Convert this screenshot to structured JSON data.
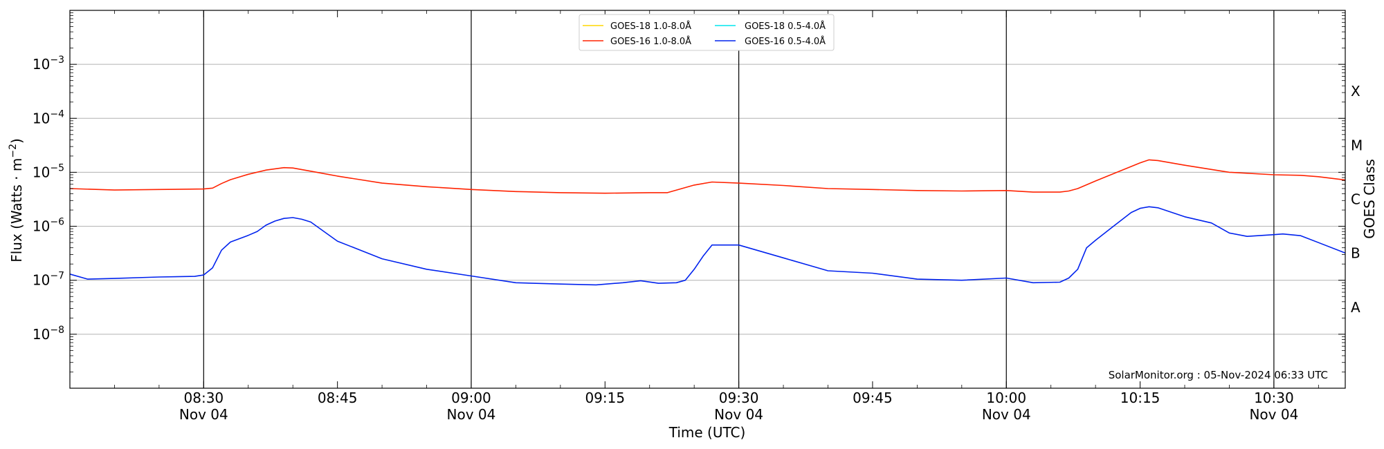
{
  "chart_data": {
    "type": "line",
    "title": "",
    "xlabel": "Time (UTC)",
    "ylabel": "Flux (Watts · m",
    "ylabel_sup": "−2",
    "ylabel_close": ")",
    "y2label": "GOES Class",
    "yscale": "log",
    "ylim": [
      1e-09,
      0.01
    ],
    "xlim": [
      "2024-11-04 08:15",
      "2024-11-04 10:38"
    ],
    "grid": "horizontal at decades",
    "legend_position": "top-center",
    "credit": "SolarMonitor.org : 05-Nov-2024 06:33 UTC",
    "yticks": [
      {
        "value": 1e-08,
        "base": "10",
        "exp": "−8"
      },
      {
        "value": 1e-07,
        "base": "10",
        "exp": "−7"
      },
      {
        "value": 1e-06,
        "base": "10",
        "exp": "−6"
      },
      {
        "value": 1e-05,
        "base": "10",
        "exp": "−5"
      },
      {
        "value": 0.0001,
        "base": "10",
        "exp": "−4"
      },
      {
        "value": 0.001,
        "base": "10",
        "exp": "−3"
      }
    ],
    "goes_classes": [
      {
        "label": "A",
        "value": 3.16e-08
      },
      {
        "label": "B",
        "value": 3.16e-07
      },
      {
        "label": "C",
        "value": 3.16e-06
      },
      {
        "label": "M",
        "value": 3.16e-05
      },
      {
        "label": "X",
        "value": 0.000316
      }
    ],
    "xticks": [
      {
        "time": "08:30",
        "line1": "08:30",
        "line2": "Nov 04",
        "major": true
      },
      {
        "time": "08:45",
        "line1": "08:45",
        "line2": "",
        "major": false
      },
      {
        "time": "09:00",
        "line1": "09:00",
        "line2": "Nov 04",
        "major": true
      },
      {
        "time": "09:15",
        "line1": "09:15",
        "line2": "",
        "major": false
      },
      {
        "time": "09:30",
        "line1": "09:30",
        "line2": "Nov 04",
        "major": true
      },
      {
        "time": "09:45",
        "line1": "09:45",
        "line2": "",
        "major": false
      },
      {
        "time": "10:00",
        "line1": "10:00",
        "line2": "Nov 04",
        "major": true
      },
      {
        "time": "10:15",
        "line1": "10:15",
        "line2": "",
        "major": false
      },
      {
        "time": "10:30",
        "line1": "10:30",
        "line2": "Nov 04",
        "major": true
      }
    ],
    "series": [
      {
        "name": "GOES-18 1.0-8.0Å",
        "color": "#ffd700",
        "x": [],
        "values": []
      },
      {
        "name": "GOES-18 0.5-4.0Å",
        "color": "#00e5ee",
        "x": [],
        "values": []
      },
      {
        "name": "GOES-16 1.0-8.0Å",
        "color": "#ff2200",
        "x": [
          "08:15",
          "08:20",
          "08:25",
          "08:30",
          "08:31",
          "08:32",
          "08:33",
          "08:35",
          "08:37",
          "08:39",
          "08:40",
          "08:42",
          "08:45",
          "08:50",
          "08:55",
          "09:00",
          "09:05",
          "09:10",
          "09:15",
          "09:20",
          "09:22",
          "09:25",
          "09:27",
          "09:30",
          "09:35",
          "09:40",
          "09:45",
          "09:50",
          "09:55",
          "10:00",
          "10:03",
          "10:06",
          "10:07",
          "10:08",
          "10:10",
          "10:13",
          "10:15",
          "10:16",
          "10:17",
          "10:20",
          "10:25",
          "10:30",
          "10:33",
          "10:35",
          "10:38"
        ],
        "values": [
          5e-06,
          4.7e-06,
          4.8e-06,
          4.9e-06,
          5.1e-06,
          6.2e-06,
          7.3e-06,
          9.2e-06,
          1.1e-05,
          1.22e-05,
          1.2e-05,
          1.05e-05,
          8.5e-06,
          6.3e-06,
          5.4e-06,
          4.8e-06,
          4.4e-06,
          4.2e-06,
          4.1e-06,
          4.2e-06,
          4.2e-06,
          5.8e-06,
          6.6e-06,
          6.3e-06,
          5.7e-06,
          5e-06,
          4.8e-06,
          4.6e-06,
          4.5e-06,
          4.6e-06,
          4.3e-06,
          4.3e-06,
          4.5e-06,
          5e-06,
          6.9e-06,
          1.1e-05,
          1.5e-05,
          1.7e-05,
          1.65e-05,
          1.35e-05,
          1e-05,
          9e-06,
          8.8e-06,
          8.3e-06,
          7.2e-06
        ]
      },
      {
        "name": "GOES-16 0.5-4.0Å",
        "color": "#0022ee",
        "x": [
          "08:15",
          "08:17",
          "08:20",
          "08:25",
          "08:29",
          "08:30",
          "08:31",
          "08:32",
          "08:33",
          "08:35",
          "08:36",
          "08:37",
          "08:38",
          "08:39",
          "08:40",
          "08:41",
          "08:42",
          "08:45",
          "08:50",
          "08:55",
          "09:00",
          "09:05",
          "09:10",
          "09:14",
          "09:17",
          "09:19",
          "09:21",
          "09:23",
          "09:24",
          "09:25",
          "09:26",
          "09:27",
          "09:30",
          "09:35",
          "09:40",
          "09:45",
          "09:50",
          "09:55",
          "10:00",
          "10:03",
          "10:06",
          "10:07",
          "10:08",
          "10:09",
          "10:10",
          "10:12",
          "10:14",
          "10:15",
          "10:16",
          "10:17",
          "10:20",
          "10:23",
          "10:25",
          "10:27",
          "10:30",
          "10:31",
          "10:33",
          "10:38"
        ],
        "values": [
          1.3e-07,
          1.05e-07,
          1.08e-07,
          1.15e-07,
          1.18e-07,
          1.25e-07,
          1.7e-07,
          3.6e-07,
          5.1e-07,
          6.8e-07,
          8e-07,
          1.05e-06,
          1.25e-06,
          1.4e-06,
          1.45e-06,
          1.35e-06,
          1.2e-06,
          5.3e-07,
          2.5e-07,
          1.6e-07,
          1.2e-07,
          9e-08,
          8.5e-08,
          8.2e-08,
          9e-08,
          9.8e-08,
          8.8e-08,
          9e-08,
          1e-07,
          1.6e-07,
          2.8e-07,
          4.5e-07,
          4.5e-07,
          2.6e-07,
          1.5e-07,
          1.35e-07,
          1.05e-07,
          1e-07,
          1.1e-07,
          9e-08,
          9.2e-08,
          1.1e-07,
          1.6e-07,
          4e-07,
          5.5e-07,
          1e-06,
          1.8e-06,
          2.15e-06,
          2.3e-06,
          2.2e-06,
          1.5e-06,
          1.15e-06,
          7.5e-07,
          6.5e-07,
          7e-07,
          7.2e-07,
          6.7e-07,
          3.2e-07
        ]
      }
    ]
  }
}
